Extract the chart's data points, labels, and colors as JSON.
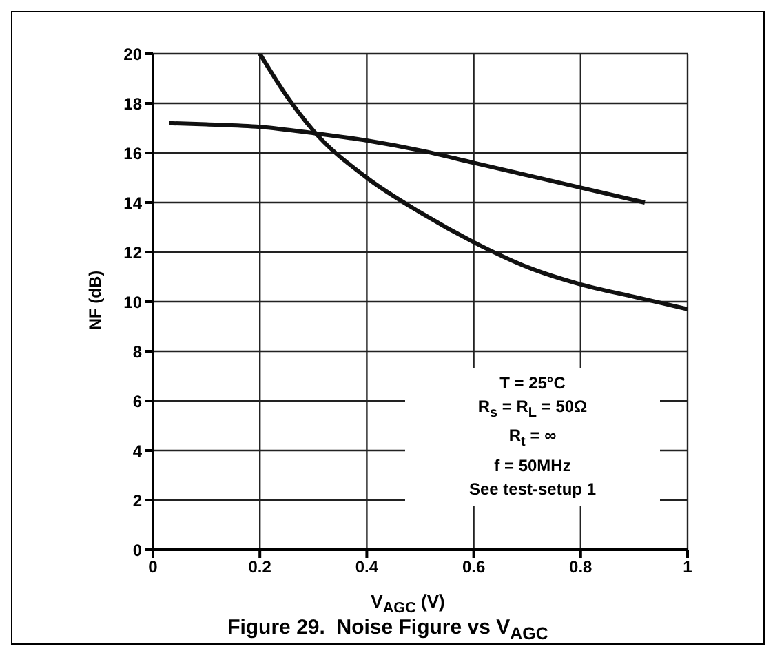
{
  "chart_data": {
    "type": "line",
    "title": "Figure 29.  Noise Figure vs V$_{AGC}$",
    "xlabel": "V$_{AGC}$ (V)",
    "ylabel": "NF (dB)",
    "annotations": [
      "T = 25°C",
      "R$_{s}$ = R$_{L}$ = 50Ω",
      "R$_{t}$ = ∞",
      "f = 50MHz",
      "See test-setup 1"
    ],
    "series": [
      {
        "color": "#111111",
        "x": [
          0.03,
          0.1,
          0.2,
          0.3,
          0.4,
          0.5,
          0.6,
          0.7,
          0.8,
          0.92
        ],
        "values": [
          17.2,
          17.15,
          17.05,
          16.8,
          16.5,
          16.1,
          15.6,
          15.1,
          14.6,
          14.0
        ]
      },
      {
        "color": "#111111",
        "x": [
          0.2,
          0.25,
          0.3,
          0.4,
          0.5,
          0.6,
          0.7,
          0.8,
          0.9,
          1.0
        ],
        "values": [
          20,
          18.3,
          16.9,
          15.0,
          13.6,
          12.4,
          11.4,
          10.7,
          10.2,
          9.7
        ]
      }
    ],
    "xlim": [
      0,
      1
    ],
    "xticks": [
      0,
      0.2,
      0.4,
      0.6,
      0.8,
      1
    ],
    "ylim": [
      0,
      20
    ],
    "yticks": [
      0,
      2,
      4,
      6,
      8,
      10,
      12,
      14,
      16,
      18,
      20
    ],
    "grid": true,
    "legend": false,
    "marker": "none",
    "line_style": "solid"
  }
}
